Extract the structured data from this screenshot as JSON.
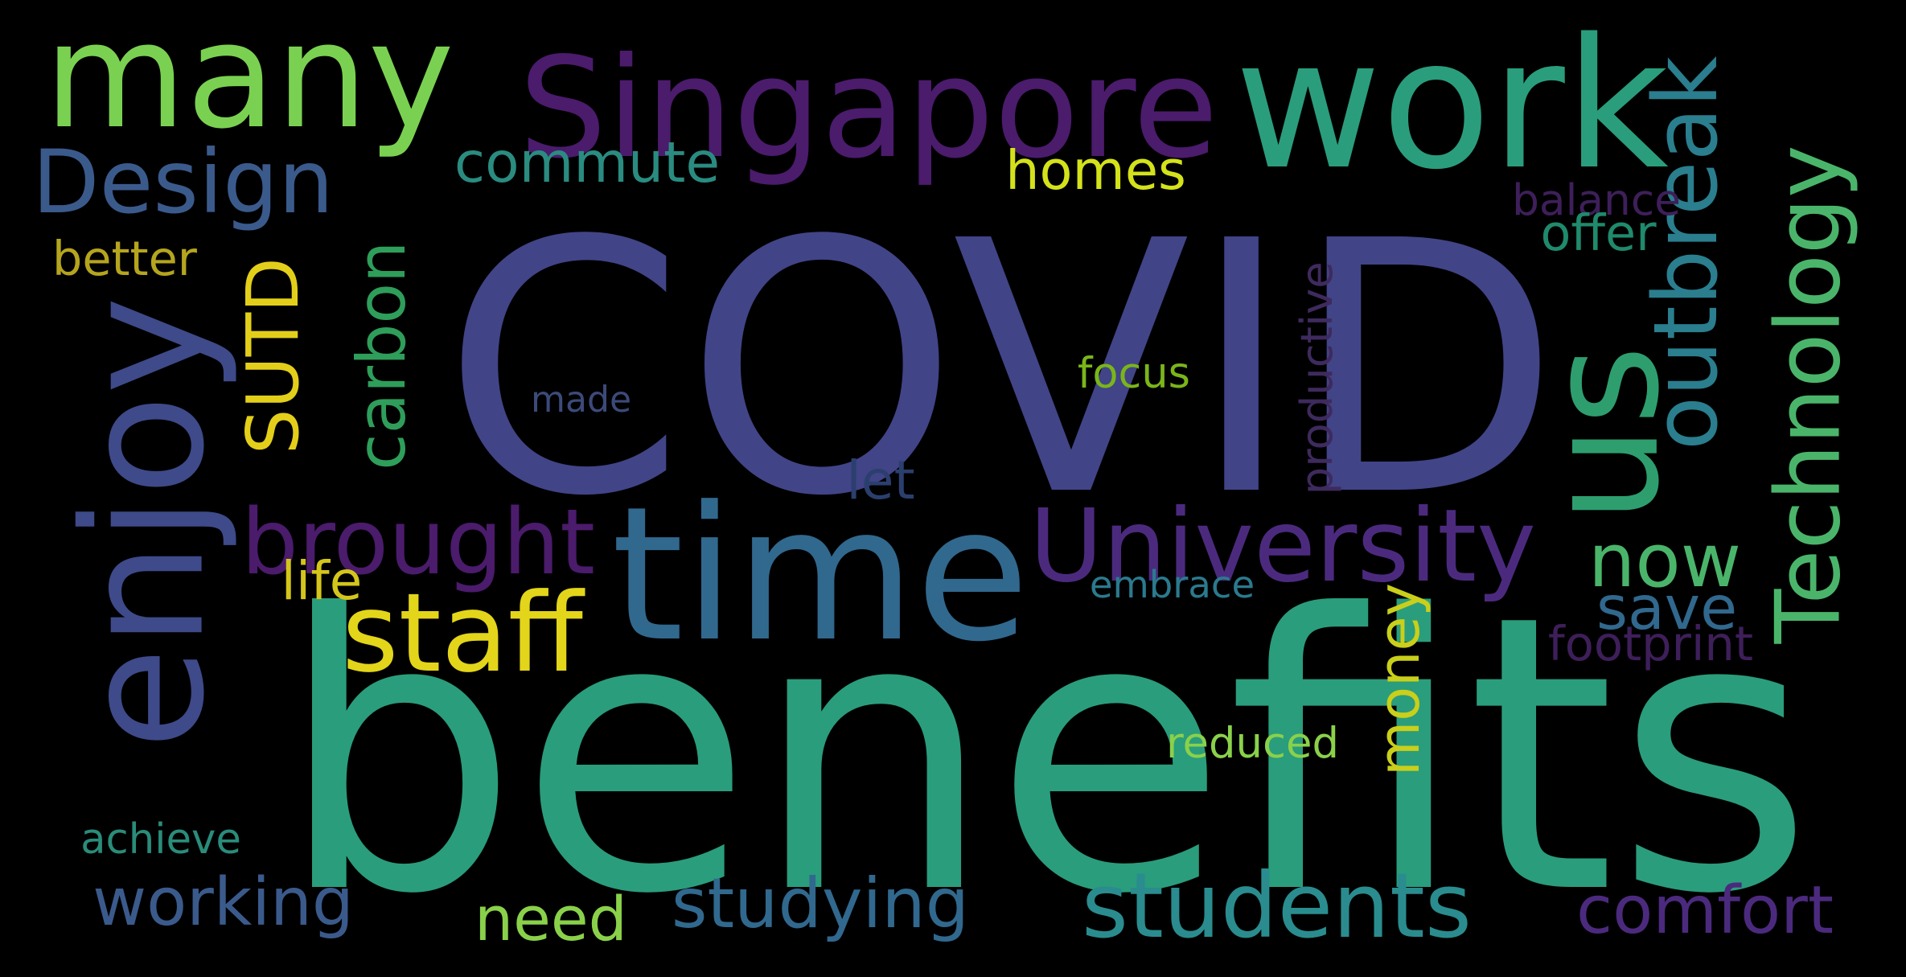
{
  "words": [
    {
      "text": "COVID",
      "color": "#414487",
      "vertical": false
    },
    {
      "text": "benefits",
      "color": "#2a9d7c",
      "vertical": false
    },
    {
      "text": "time",
      "color": "#31688e",
      "vertical": false
    },
    {
      "text": "many",
      "color": "#7ad151",
      "vertical": false
    },
    {
      "text": "Singapore",
      "color": "#4b1b6c",
      "vertical": false
    },
    {
      "text": "work",
      "color": "#2a9d7c",
      "vertical": false
    },
    {
      "text": "enjoy",
      "color": "#3e4a89",
      "vertical": true
    },
    {
      "text": "us",
      "color": "#2e9e6e",
      "vertical": true
    },
    {
      "text": "Design",
      "color": "#3b5a8c",
      "vertical": false
    },
    {
      "text": "commute",
      "color": "#2a8c80",
      "vertical": false
    },
    {
      "text": "homes",
      "color": "#d4e21a",
      "vertical": false
    },
    {
      "text": "outbreak",
      "color": "#2a7e8e",
      "vertical": true
    },
    {
      "text": "Technology",
      "color": "#4ab56a",
      "vertical": true
    },
    {
      "text": "balance",
      "color": "#3e1f5a",
      "vertical": false
    },
    {
      "text": "offer",
      "color": "#1f8a6c",
      "vertical": false
    },
    {
      "text": "better",
      "color": "#b5a51e",
      "vertical": false
    },
    {
      "text": "SUTD",
      "color": "#e3cf1a",
      "vertical": true
    },
    {
      "text": "carbon",
      "color": "#2e9e5a",
      "vertical": true
    },
    {
      "text": "focus",
      "color": "#7ab51a",
      "vertical": false
    },
    {
      "text": "made",
      "color": "#3c4a7a",
      "vertical": false
    },
    {
      "text": "productive",
      "color": "#3e2a5e",
      "vertical": true
    },
    {
      "text": "let",
      "color": "#2b3f6e",
      "vertical": false
    },
    {
      "text": "brought",
      "color": "#4b1b6c",
      "vertical": false
    },
    {
      "text": "University",
      "color": "#4b2a7e",
      "vertical": false
    },
    {
      "text": "now",
      "color": "#4ab56a",
      "vertical": false
    },
    {
      "text": "save",
      "color": "#31688e",
      "vertical": false
    },
    {
      "text": "staff",
      "color": "#e3d51a",
      "vertical": false
    },
    {
      "text": "life",
      "color": "#d4c51a",
      "vertical": false
    },
    {
      "text": "embrace",
      "color": "#2a7a8e",
      "vertical": false
    },
    {
      "text": "money",
      "color": "#c9cf1a",
      "vertical": true
    },
    {
      "text": "footprint",
      "color": "#3e1f5a",
      "vertical": false
    },
    {
      "text": "reduced",
      "color": "#8ad14a",
      "vertical": false
    },
    {
      "text": "achieve",
      "color": "#2a8c7a",
      "vertical": false
    },
    {
      "text": "working",
      "color": "#3b5a8c",
      "vertical": false
    },
    {
      "text": "need",
      "color": "#8ad14a",
      "vertical": false
    },
    {
      "text": "studying",
      "color": "#31688e",
      "vertical": false
    },
    {
      "text": "students",
      "color": "#2a8c8e",
      "vertical": false
    },
    {
      "text": "comfort",
      "color": "#4b2a7e",
      "vertical": false
    }
  ]
}
